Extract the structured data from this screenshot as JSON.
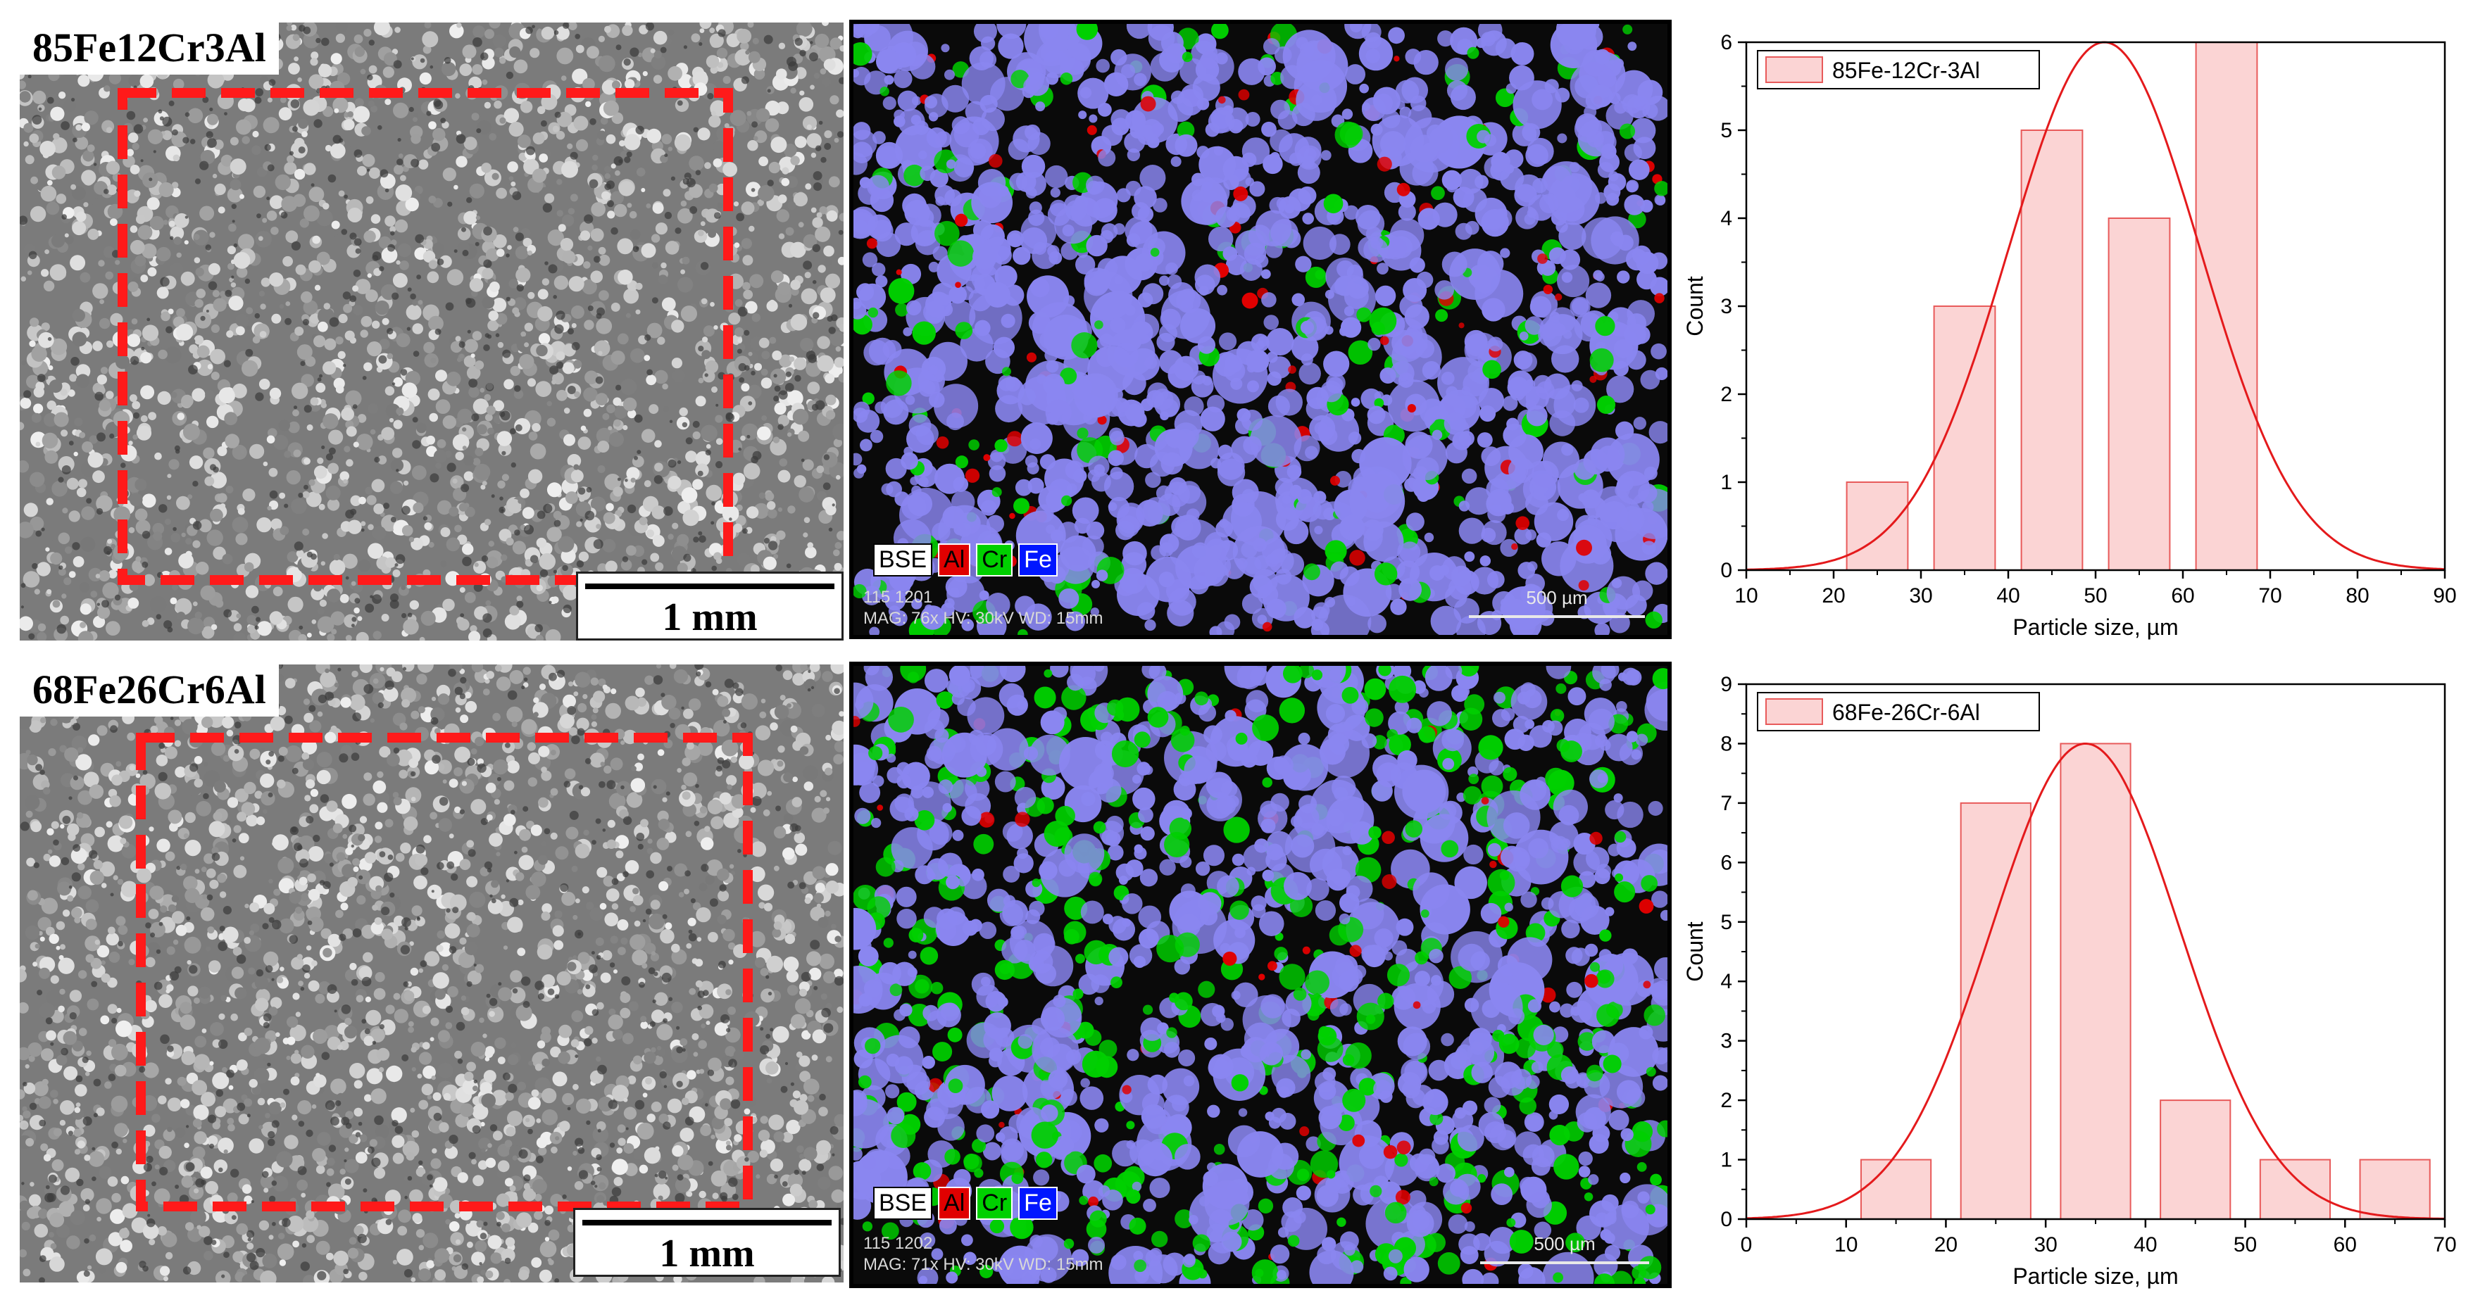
{
  "panels": {
    "top": {
      "sample_label": "85Fe12Cr3Al",
      "scale_label": "1 mm",
      "eds": {
        "legend": [
          "BSE",
          "Al",
          "Cr",
          "Fe"
        ],
        "meta_line1": "115 1201",
        "meta_line2": "MAG: 76x   HV: 30kV   WD: 15mm",
        "scale": "500 µm"
      }
    },
    "bottom": {
      "sample_label": "68Fe26Cr6Al",
      "scale_label": "1 mm",
      "eds": {
        "legend": [
          "BSE",
          "Al",
          "Cr",
          "Fe"
        ],
        "meta_line1": "115 1202",
        "meta_line2": "MAG: 71x   HV: 30kV   WD: 15mm",
        "scale": "500 µm"
      }
    }
  },
  "colors": {
    "bar_fill": "#fbd4d4",
    "bar_stroke": "#e85a5a",
    "curve": "#e41a1c",
    "eds_al": "#e00000",
    "eds_cr": "#00d000",
    "eds_fe": "#8a86f0"
  },
  "chart_data": [
    {
      "type": "bar",
      "title": "",
      "xlabel": "Particle size, µm",
      "ylabel": "Count",
      "xlim": [
        10,
        90
      ],
      "ylim": [
        0,
        6
      ],
      "xticks": [
        10,
        20,
        30,
        40,
        50,
        60,
        70,
        80,
        90
      ],
      "yticks": [
        0,
        1,
        2,
        3,
        4,
        5,
        6
      ],
      "bin_width": 7,
      "x": [
        25,
        35,
        45,
        55,
        65
      ],
      "values": [
        1,
        3,
        5,
        4,
        6
      ],
      "legend": [
        "85Fe-12Cr-3Al"
      ],
      "legend_position": "top-left",
      "fit": {
        "type": "gaussian",
        "mean": 51,
        "sigma": 11,
        "peak": 6
      }
    },
    {
      "type": "bar",
      "title": "",
      "xlabel": "Particle size, µm",
      "ylabel": "Count",
      "xlim": [
        0,
        70
      ],
      "ylim": [
        0,
        9
      ],
      "xticks": [
        0,
        10,
        20,
        30,
        40,
        50,
        60,
        70
      ],
      "yticks": [
        0,
        1,
        2,
        3,
        4,
        5,
        6,
        7,
        8,
        9
      ],
      "bin_width": 7,
      "x": [
        15,
        25,
        35,
        45,
        55,
        65
      ],
      "values": [
        1,
        7,
        8,
        2,
        1,
        1
      ],
      "legend": [
        "68Fe-26Cr-6Al"
      ],
      "legend_position": "top-left",
      "fit": {
        "type": "gaussian",
        "mean": 34,
        "sigma": 9.5,
        "peak": 8
      }
    }
  ]
}
